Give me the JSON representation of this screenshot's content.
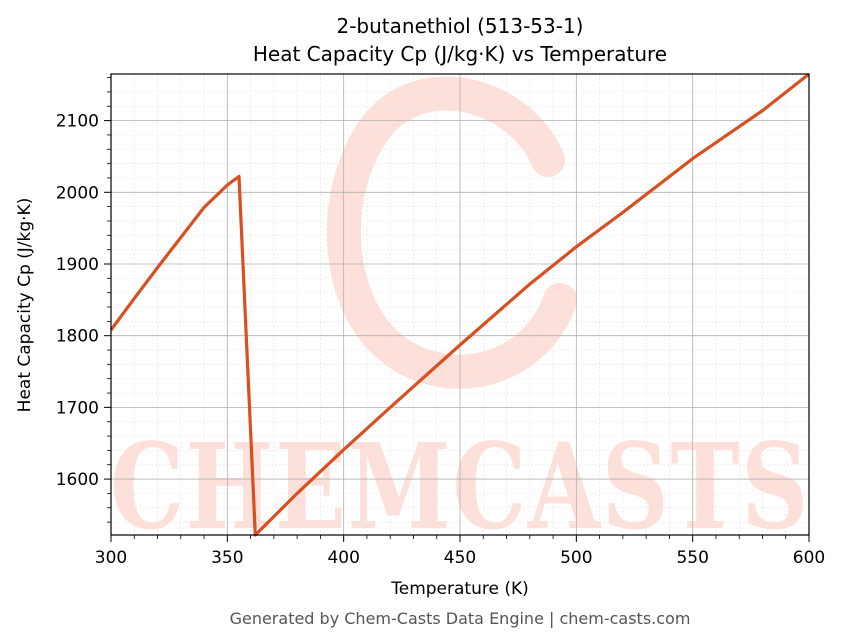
{
  "chart_data": {
    "type": "line",
    "title_line1": "2-butanethiol (513-53-1)",
    "title_line2": "Heat Capacity Cp (J/kg·K) vs Temperature",
    "xlabel": "Temperature (K)",
    "ylabel": "Heat Capacity Cp (J/kg·K)",
    "xlim": [
      300,
      600
    ],
    "ylim": [
      1522,
      2165
    ],
    "x_ticks": [
      300,
      350,
      400,
      450,
      500,
      550,
      600
    ],
    "y_ticks": [
      1600,
      1700,
      1800,
      1900,
      2000,
      2100
    ],
    "grid": true,
    "line_color": "#d95020",
    "series": [
      {
        "x": [
          300,
          310,
          320,
          330,
          340,
          350,
          355,
          362,
          380,
          400,
          420,
          450,
          480,
          500,
          520,
          550,
          580,
          600
        ],
        "y": [
          1808,
          1852,
          1895,
          1937,
          1979,
          2010,
          2022,
          1522,
          1580,
          1641,
          1700,
          1787,
          1872,
          1924,
          1972,
          2047,
          2114,
          2165
        ]
      }
    ]
  },
  "watermark": {
    "text": "CHEMCASTS",
    "color": "#fde0da"
  },
  "footer": "Generated by Chem-Casts Data Engine | chem-casts.com"
}
